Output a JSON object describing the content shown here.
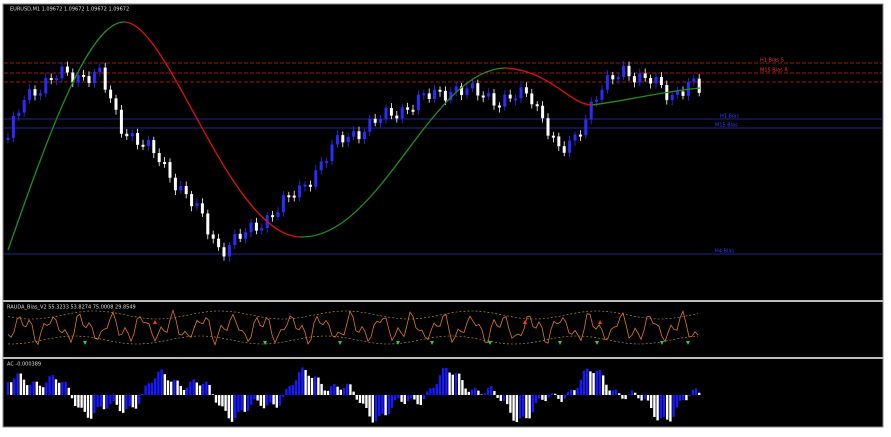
{
  "header": {
    "symbol_info": "EURUSD,M1  1.09672 1.09672 1.09672 1.09672"
  },
  "levels": [
    {
      "label": "H1 Bias S",
      "color": "#ff2a2a"
    },
    {
      "label": "M15 Bias R",
      "color": "#ff2a2a"
    },
    {
      "label": "H1 Bias",
      "color": "#3a3aff"
    },
    {
      "label": "M15 Bias",
      "color": "#3a3aff"
    },
    {
      "label": "H4 Bias",
      "color": "#3a3aff"
    }
  ],
  "indicators": [
    {
      "label": "RAUDA_Bias_V2 55.3233 53.8274 75.0008 29.8549"
    },
    {
      "label": "AC -0.000389"
    }
  ]
}
